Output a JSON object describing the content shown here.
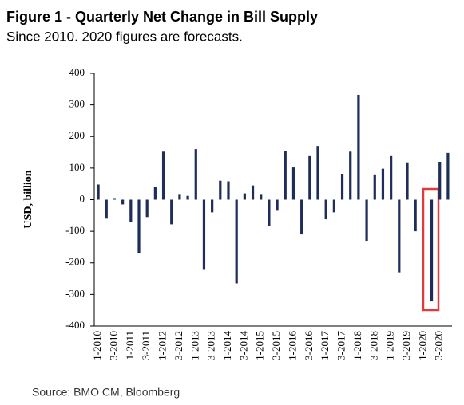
{
  "chart_data": {
    "type": "bar",
    "title": "Figure 1 - Quarterly Net Change in Bill Supply",
    "subtitle": "Since 2010. 2020 figures are forecasts.",
    "y_label": "USD, billion",
    "source": "Source: BMO CM, Bloomberg",
    "color": "#1f2d5a",
    "categories": [
      "1-2010",
      null,
      "3-2010",
      null,
      "1-2011",
      null,
      "3-2011",
      null,
      "1-2012",
      null,
      "3-2012",
      null,
      "1-2013",
      null,
      "3-2013",
      null,
      "1-2014",
      null,
      "3-2014",
      null,
      "1-2015",
      null,
      "3-2015",
      null,
      "1-2016",
      null,
      "3-2016",
      null,
      "1-2017",
      null,
      "3-2017",
      null,
      "1-2018",
      null,
      "3-2018",
      null,
      "1-2019",
      null,
      "3-2019",
      null,
      "1-2020",
      null,
      "3-2020",
      null
    ],
    "values": [
      48,
      -60,
      5,
      -15,
      -72,
      -168,
      -55,
      40,
      152,
      -78,
      18,
      12,
      160,
      -222,
      -40,
      60,
      58,
      -265,
      20,
      45,
      18,
      -82,
      -35,
      155,
      102,
      -110,
      138,
      170,
      -62,
      -40,
      82,
      152,
      332,
      -130,
      80,
      98,
      138,
      -230,
      118,
      -100,
      0,
      -322,
      120,
      148
    ],
    "ylim": [
      -400,
      400
    ],
    "yticks": [
      -400,
      -300,
      -200,
      -100,
      0,
      100,
      200,
      300,
      400
    ],
    "grid": false
  }
}
